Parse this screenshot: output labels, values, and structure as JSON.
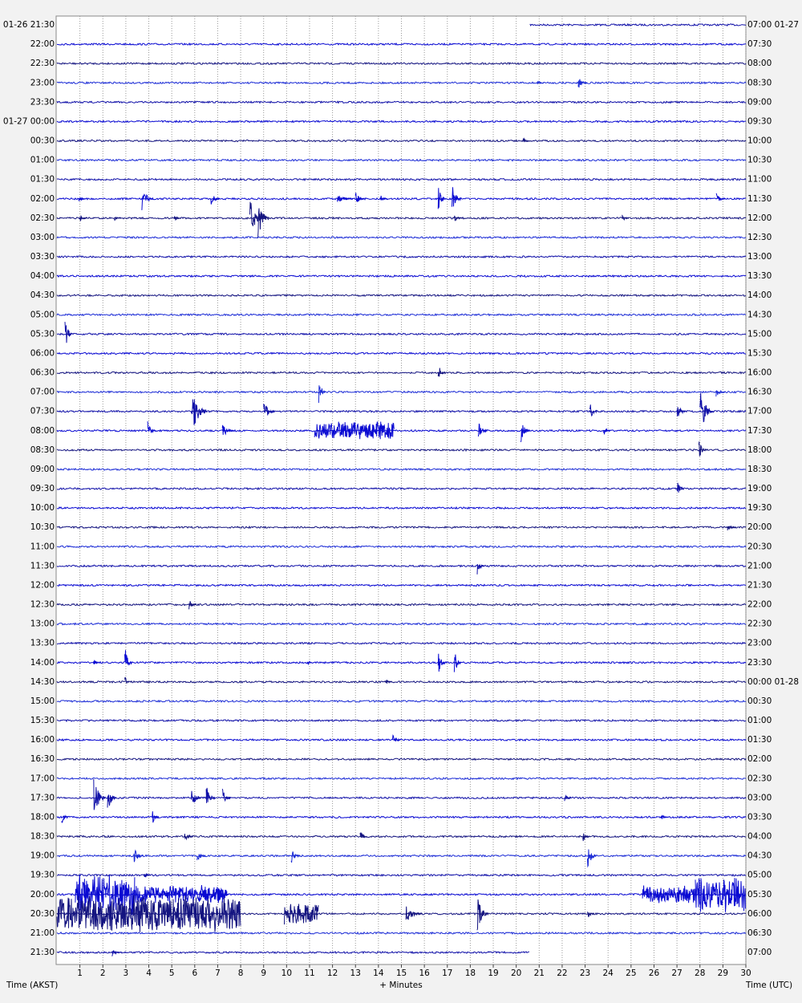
{
  "chart_data": {
    "type": "helicorder",
    "xlim": [
      0,
      30
    ],
    "xticks": [
      1,
      2,
      3,
      4,
      5,
      6,
      7,
      8,
      9,
      10,
      11,
      12,
      13,
      14,
      15,
      16,
      17,
      18,
      19,
      20,
      21,
      22,
      23,
      24,
      25,
      26,
      27,
      28,
      29,
      30
    ],
    "x_label": "+ Minutes",
    "left_axis_label": "Time (AKST)",
    "right_axis_label": "Time (UTC)",
    "grid": true,
    "colors": [
      "#1010a8",
      "#0a0ad2",
      "#141480",
      "#1c2cd6"
    ],
    "rows": [
      {
        "left": "01-26 21:30",
        "right": "07:00 01-27",
        "start_minute": 20.6,
        "events": []
      },
      {
        "left": "22:00",
        "right": "07:30",
        "events": []
      },
      {
        "left": "22:30",
        "right": "08:00",
        "events": []
      },
      {
        "left": "23:00",
        "right": "08:30",
        "events": [
          {
            "minute": 20.9,
            "amplitude": 0.2,
            "duration": 0.3
          },
          {
            "minute": 22.7,
            "amplitude": 0.35,
            "duration": 0.4
          }
        ]
      },
      {
        "left": "23:30",
        "right": "09:00",
        "events": []
      },
      {
        "left": "01-27 00:00",
        "right": "09:30",
        "events": []
      },
      {
        "left": "00:30",
        "right": "10:00",
        "events": [
          {
            "minute": 20.3,
            "amplitude": 0.15,
            "duration": 0.3
          }
        ]
      },
      {
        "left": "01:00",
        "right": "10:30",
        "events": []
      },
      {
        "left": "01:30",
        "right": "11:00",
        "events": []
      },
      {
        "left": "02:00",
        "right": "11:30",
        "events": [
          {
            "minute": 0.95,
            "amplitude": 0.2,
            "duration": 0.3
          },
          {
            "minute": 3.7,
            "amplitude": 0.7,
            "duration": 0.5
          },
          {
            "minute": 6.7,
            "amplitude": 0.4,
            "duration": 0.4
          },
          {
            "minute": 12.2,
            "amplitude": 0.25,
            "duration": 0.7
          },
          {
            "minute": 13.0,
            "amplitude": 0.4,
            "duration": 0.4
          },
          {
            "minute": 14.1,
            "amplitude": 0.2,
            "duration": 0.3
          },
          {
            "minute": 16.6,
            "amplitude": 0.8,
            "duration": 0.3
          },
          {
            "minute": 17.2,
            "amplitude": 0.8,
            "duration": 0.4
          },
          {
            "minute": 28.7,
            "amplitude": 0.3,
            "duration": 0.4
          }
        ]
      },
      {
        "left": "02:30",
        "right": "12:00",
        "events": [
          {
            "minute": 1.0,
            "amplitude": 0.2,
            "duration": 0.3
          },
          {
            "minute": 2.5,
            "amplitude": 0.15,
            "duration": 0.3
          },
          {
            "minute": 5.1,
            "amplitude": 0.2,
            "duration": 0.3
          },
          {
            "minute": 8.4,
            "amplitude": 1.3,
            "duration": 0.5
          },
          {
            "minute": 8.75,
            "amplitude": 1.1,
            "duration": 0.5
          },
          {
            "minute": 17.3,
            "amplitude": 0.3,
            "duration": 0.3
          },
          {
            "minute": 24.6,
            "amplitude": 0.25,
            "duration": 0.3
          }
        ]
      },
      {
        "left": "03:00",
        "right": "12:30",
        "events": []
      },
      {
        "left": "03:30",
        "right": "13:00",
        "events": []
      },
      {
        "left": "04:00",
        "right": "13:30",
        "events": []
      },
      {
        "left": "04:30",
        "right": "14:00",
        "events": []
      },
      {
        "left": "05:00",
        "right": "14:30",
        "events": []
      },
      {
        "left": "05:30",
        "right": "15:00",
        "events": [
          {
            "minute": 0.35,
            "amplitude": 1.0,
            "duration": 0.3
          }
        ]
      },
      {
        "left": "06:00",
        "right": "15:30",
        "events": []
      },
      {
        "left": "06:30",
        "right": "16:00",
        "events": [
          {
            "minute": 16.6,
            "amplitude": 0.5,
            "duration": 0.3
          }
        ]
      },
      {
        "left": "07:00",
        "right": "16:30",
        "events": [
          {
            "minute": 11.4,
            "amplitude": 0.8,
            "duration": 0.3
          },
          {
            "minute": 28.7,
            "amplitude": 0.3,
            "duration": 0.4
          }
        ]
      },
      {
        "left": "07:30",
        "right": "17:00",
        "events": [
          {
            "minute": 5.85,
            "amplitude": 1.3,
            "duration": 0.7
          },
          {
            "minute": 9.0,
            "amplitude": 0.6,
            "duration": 0.5
          },
          {
            "minute": 23.2,
            "amplitude": 0.5,
            "duration": 0.4
          },
          {
            "minute": 27.0,
            "amplitude": 0.5,
            "duration": 0.4
          },
          {
            "minute": 28.0,
            "amplitude": 1.3,
            "duration": 0.6
          }
        ]
      },
      {
        "left": "08:00",
        "right": "17:30",
        "events": [
          {
            "minute": 3.95,
            "amplitude": 0.5,
            "duration": 0.4
          },
          {
            "minute": 7.2,
            "amplitude": 0.4,
            "duration": 0.5
          },
          {
            "minute": 11.2,
            "amplitude": 0.5,
            "duration": 3.5
          },
          {
            "minute": 18.35,
            "amplitude": 0.5,
            "duration": 0.4
          },
          {
            "minute": 20.2,
            "amplitude": 0.6,
            "duration": 0.4
          },
          {
            "minute": 23.8,
            "amplitude": 0.3,
            "duration": 0.3
          }
        ]
      },
      {
        "left": "08:30",
        "right": "18:00",
        "events": [
          {
            "minute": 27.95,
            "amplitude": 0.6,
            "duration": 0.3
          }
        ]
      },
      {
        "left": "09:00",
        "right": "18:30",
        "events": []
      },
      {
        "left": "09:30",
        "right": "19:00",
        "events": [
          {
            "minute": 27.0,
            "amplitude": 0.5,
            "duration": 0.3
          }
        ]
      },
      {
        "left": "10:00",
        "right": "19:30",
        "events": []
      },
      {
        "left": "10:30",
        "right": "20:00",
        "events": [
          {
            "minute": 29.2,
            "amplitude": 0.2,
            "duration": 0.4
          }
        ]
      },
      {
        "left": "11:00",
        "right": "20:30",
        "events": []
      },
      {
        "left": "11:30",
        "right": "21:00",
        "events": [
          {
            "minute": 18.3,
            "amplitude": 0.5,
            "duration": 0.3
          }
        ]
      },
      {
        "left": "12:00",
        "right": "21:30",
        "events": []
      },
      {
        "left": "12:30",
        "right": "22:00",
        "events": [
          {
            "minute": 5.75,
            "amplitude": 0.3,
            "duration": 0.3
          }
        ]
      },
      {
        "left": "13:00",
        "right": "22:30",
        "events": []
      },
      {
        "left": "13:30",
        "right": "23:00",
        "events": []
      },
      {
        "left": "14:00",
        "right": "23:30",
        "events": [
          {
            "minute": 1.6,
            "amplitude": 0.2,
            "duration": 0.3
          },
          {
            "minute": 2.95,
            "amplitude": 1.0,
            "duration": 0.3
          },
          {
            "minute": 10.9,
            "amplitude": 0.2,
            "duration": 0.2
          },
          {
            "minute": 16.6,
            "amplitude": 0.8,
            "duration": 0.3
          },
          {
            "minute": 17.3,
            "amplitude": 0.8,
            "duration": 0.3
          }
        ]
      },
      {
        "left": "14:30",
        "right": "00:00 01-28",
        "events": [
          {
            "minute": 2.95,
            "amplitude": 0.4,
            "duration": 0.2
          },
          {
            "minute": 14.3,
            "amplitude": 0.2,
            "duration": 0.3
          }
        ]
      },
      {
        "left": "15:00",
        "right": "00:30",
        "events": []
      },
      {
        "left": "15:30",
        "right": "01:00",
        "events": []
      },
      {
        "left": "16:00",
        "right": "01:30",
        "events": [
          {
            "minute": 14.6,
            "amplitude": 0.4,
            "duration": 0.4
          }
        ]
      },
      {
        "left": "16:30",
        "right": "02:00",
        "events": []
      },
      {
        "left": "17:00",
        "right": "02:30",
        "events": []
      },
      {
        "left": "17:30",
        "right": "03:00",
        "events": [
          {
            "minute": 1.6,
            "amplitude": 1.3,
            "duration": 0.5
          },
          {
            "minute": 2.2,
            "amplitude": 0.8,
            "duration": 0.4
          },
          {
            "minute": 5.85,
            "amplitude": 0.8,
            "duration": 0.4
          },
          {
            "minute": 6.5,
            "amplitude": 0.8,
            "duration": 0.4
          },
          {
            "minute": 7.2,
            "amplitude": 0.6,
            "duration": 0.4
          },
          {
            "minute": 22.1,
            "amplitude": 0.2,
            "duration": 0.3
          }
        ]
      },
      {
        "left": "18:00",
        "right": "03:30",
        "events": [
          {
            "minute": 0.2,
            "amplitude": 0.5,
            "duration": 0.3
          },
          {
            "minute": 4.15,
            "amplitude": 0.4,
            "duration": 0.3
          },
          {
            "minute": 26.3,
            "amplitude": 0.2,
            "duration": 0.3
          }
        ]
      },
      {
        "left": "18:30",
        "right": "04:00",
        "events": [
          {
            "minute": 5.55,
            "amplitude": 0.4,
            "duration": 0.4
          },
          {
            "minute": 13.2,
            "amplitude": 0.4,
            "duration": 0.3
          },
          {
            "minute": 22.9,
            "amplitude": 0.3,
            "duration": 0.3
          }
        ]
      },
      {
        "left": "19:00",
        "right": "04:30",
        "events": [
          {
            "minute": 3.35,
            "amplitude": 0.5,
            "duration": 0.4
          },
          {
            "minute": 6.1,
            "amplitude": 0.4,
            "duration": 0.4
          },
          {
            "minute": 10.2,
            "amplitude": 0.4,
            "duration": 0.4
          },
          {
            "minute": 23.1,
            "amplitude": 0.7,
            "duration": 0.4
          }
        ]
      },
      {
        "left": "19:30",
        "right": "05:00",
        "events": [
          {
            "minute": 3.8,
            "amplitude": 0.2,
            "duration": 0.3
          }
        ]
      },
      {
        "left": "20:00",
        "right": "05:30",
        "events": [
          {
            "minute": 0.8,
            "amplitude": 1.1,
            "duration": 2.6
          },
          {
            "minute": 3.4,
            "amplitude": 0.5,
            "duration": 4.0
          },
          {
            "minute": 6.2,
            "amplitude": 0.5,
            "duration": 0.5
          },
          {
            "minute": 7.0,
            "amplitude": 0.5,
            "duration": 0.5
          },
          {
            "minute": 25.5,
            "amplitude": 0.5,
            "duration": 2.3
          },
          {
            "minute": 27.8,
            "amplitude": 1.0,
            "duration": 2.2
          }
        ]
      },
      {
        "left": "20:30",
        "right": "06:00",
        "events": [
          {
            "minute": 0.0,
            "amplitude": 1.0,
            "duration": 8.0
          },
          {
            "minute": 9.9,
            "amplitude": 0.6,
            "duration": 1.5
          },
          {
            "minute": 15.2,
            "amplitude": 0.5,
            "duration": 0.7
          },
          {
            "minute": 18.3,
            "amplitude": 1.0,
            "duration": 0.5
          },
          {
            "minute": 23.1,
            "amplitude": 0.3,
            "duration": 0.3
          }
        ]
      },
      {
        "left": "21:00",
        "right": "06:30",
        "events": []
      },
      {
        "left": "21:30",
        "right": "07:00",
        "end_minute": 20.6,
        "events": [
          {
            "minute": 2.4,
            "amplitude": 0.2,
            "duration": 0.4
          }
        ]
      }
    ]
  }
}
